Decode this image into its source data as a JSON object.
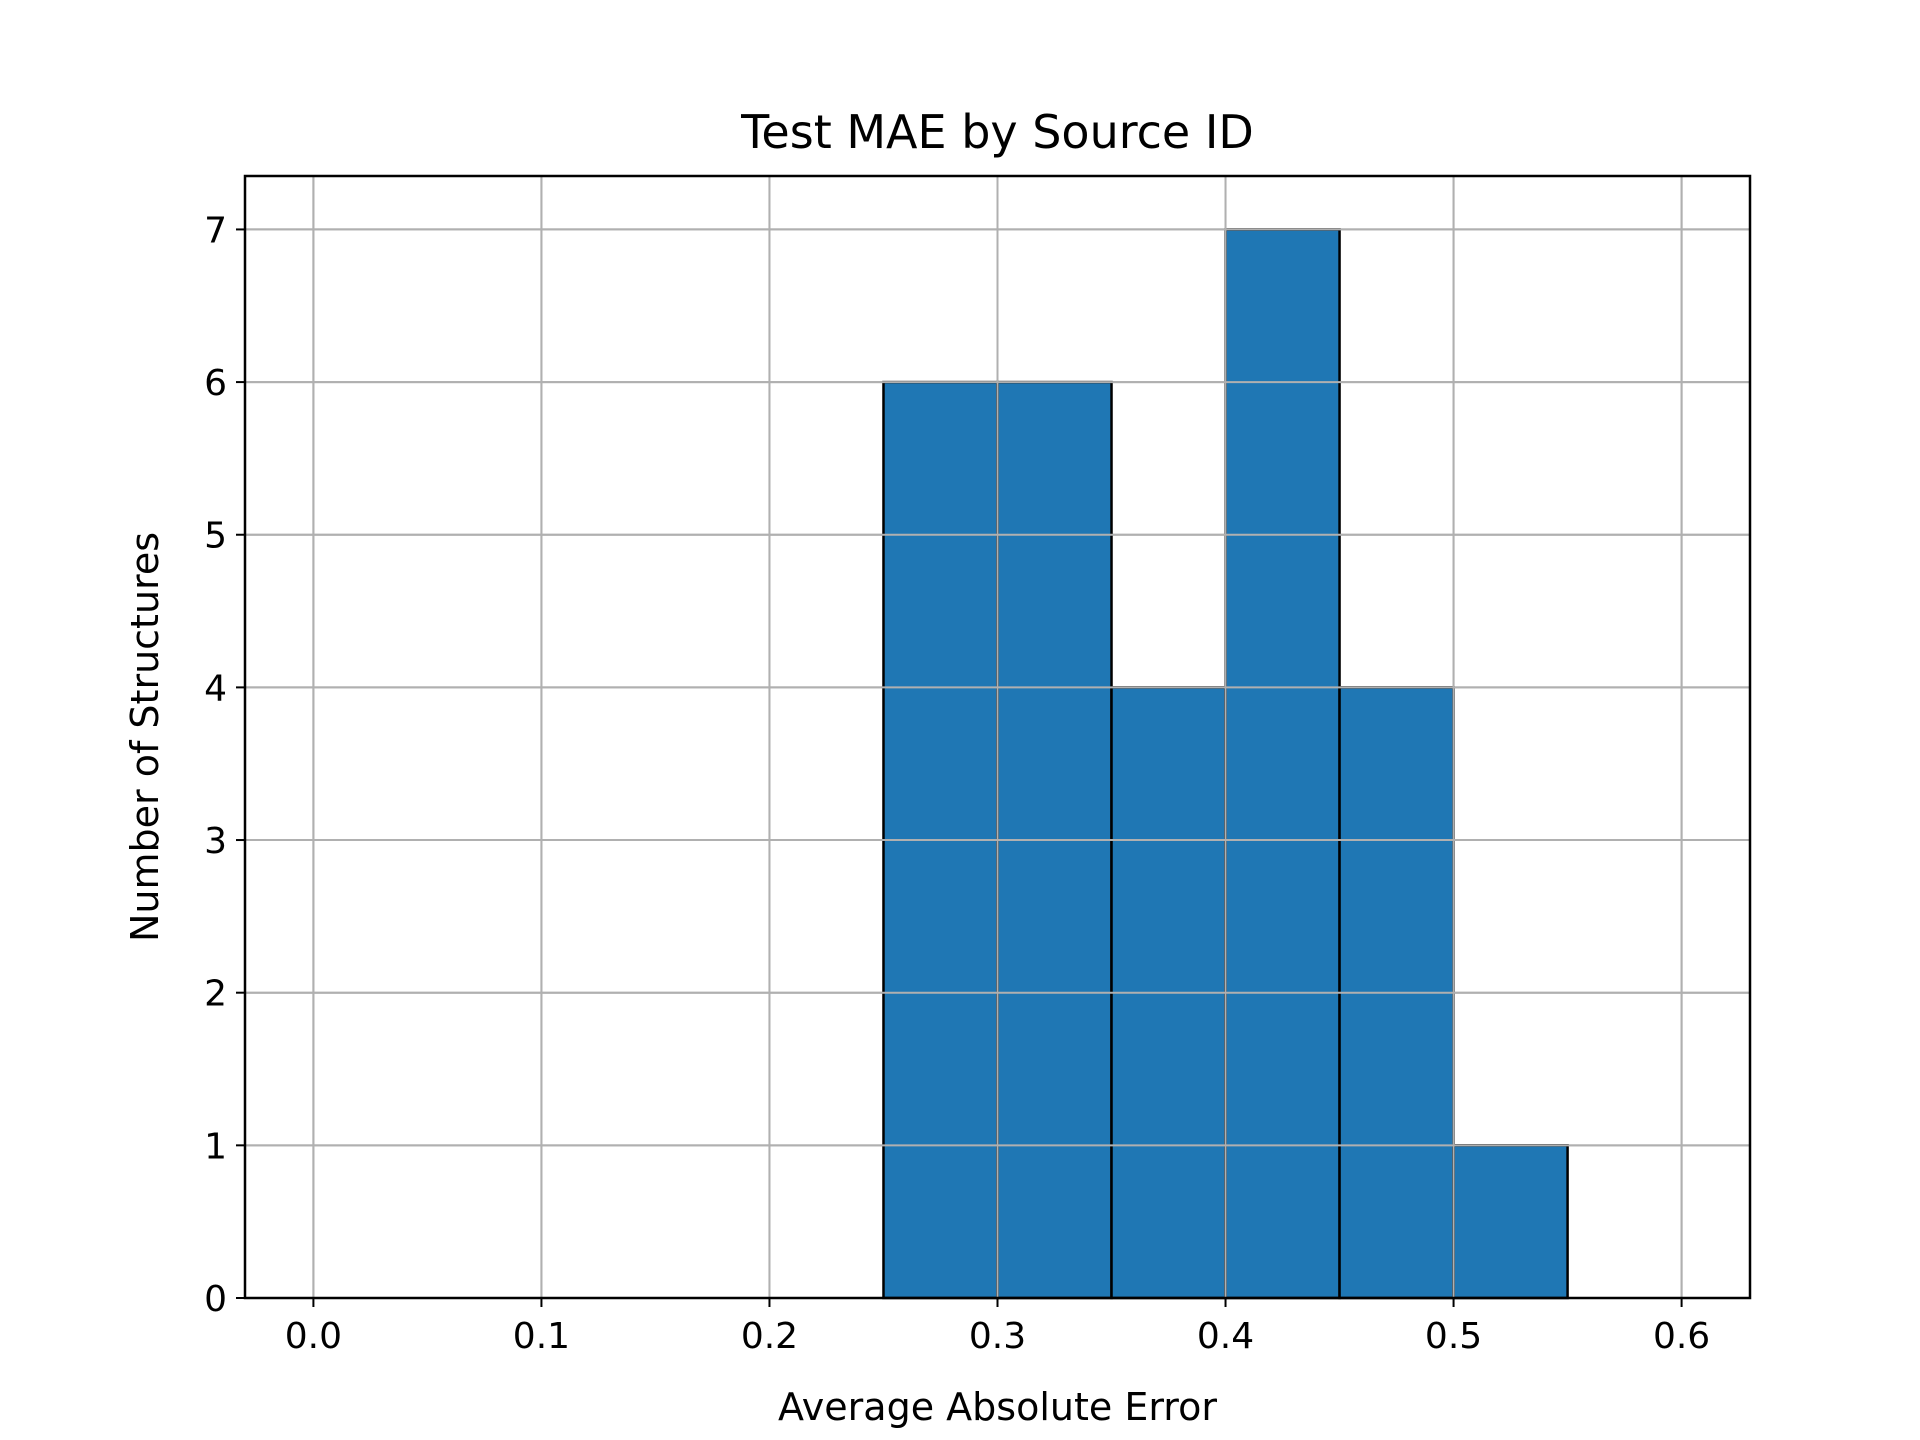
{
  "chart_data": {
    "type": "bar",
    "title": "Test MAE by Source ID",
    "xlabel": "Average Absolute Error",
    "ylabel": "Number of Structures",
    "bins": [
      {
        "start": 0.0,
        "end": 0.05,
        "count": 0
      },
      {
        "start": 0.05,
        "end": 0.1,
        "count": 0
      },
      {
        "start": 0.1,
        "end": 0.15,
        "count": 0
      },
      {
        "start": 0.15,
        "end": 0.2,
        "count": 0
      },
      {
        "start": 0.2,
        "end": 0.25,
        "count": 0
      },
      {
        "start": 0.25,
        "end": 0.3,
        "count": 6
      },
      {
        "start": 0.3,
        "end": 0.35,
        "count": 6
      },
      {
        "start": 0.35,
        "end": 0.4,
        "count": 4
      },
      {
        "start": 0.4,
        "end": 0.45,
        "count": 7
      },
      {
        "start": 0.45,
        "end": 0.5,
        "count": 4
      },
      {
        "start": 0.5,
        "end": 0.55,
        "count": 1
      },
      {
        "start": 0.55,
        "end": 0.6,
        "count": 0
      }
    ],
    "xlim": [
      -0.03,
      0.63
    ],
    "ylim": [
      0,
      7.35
    ],
    "xticks": [
      "0.0",
      "0.1",
      "0.2",
      "0.3",
      "0.4",
      "0.5",
      "0.6"
    ],
    "yticks": [
      "0",
      "1",
      "2",
      "3",
      "4",
      "5",
      "6",
      "7"
    ],
    "grid": true,
    "bar_color": "#1f77b4",
    "edge_color": "#000000",
    "grid_color": "#b0b0b0"
  }
}
